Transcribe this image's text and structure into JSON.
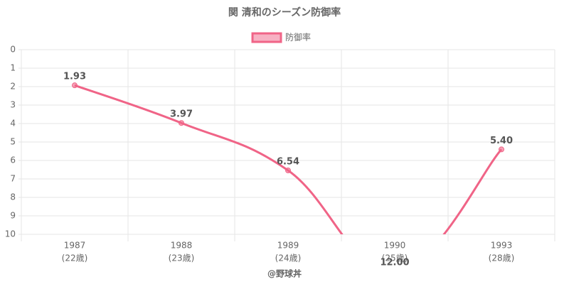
{
  "chart_data": {
    "type": "line",
    "title": "関 清和のシーズン防御率",
    "x_label": "@野球丼",
    "categories": [
      [
        "1987",
        "(22歳)"
      ],
      [
        "1988",
        "(23歳)"
      ],
      [
        "1989",
        "(24歳)"
      ],
      [
        "1990",
        "(25歳)"
      ],
      [
        "1993",
        "(28歳)"
      ]
    ],
    "series": [
      {
        "name": "防御率",
        "color": "#f06487",
        "values": [
          1.93,
          3.97,
          6.54,
          12.0,
          5.4
        ],
        "value_labels": [
          "1.93",
          "3.97",
          "6.54",
          "12.00",
          "5.40"
        ]
      }
    ],
    "ylim": [
      0,
      10
    ],
    "y_reversed": true,
    "yticks": [
      0,
      1,
      2,
      3,
      4,
      5,
      6,
      7,
      8,
      9,
      10
    ],
    "grid": true,
    "legend": "top"
  }
}
